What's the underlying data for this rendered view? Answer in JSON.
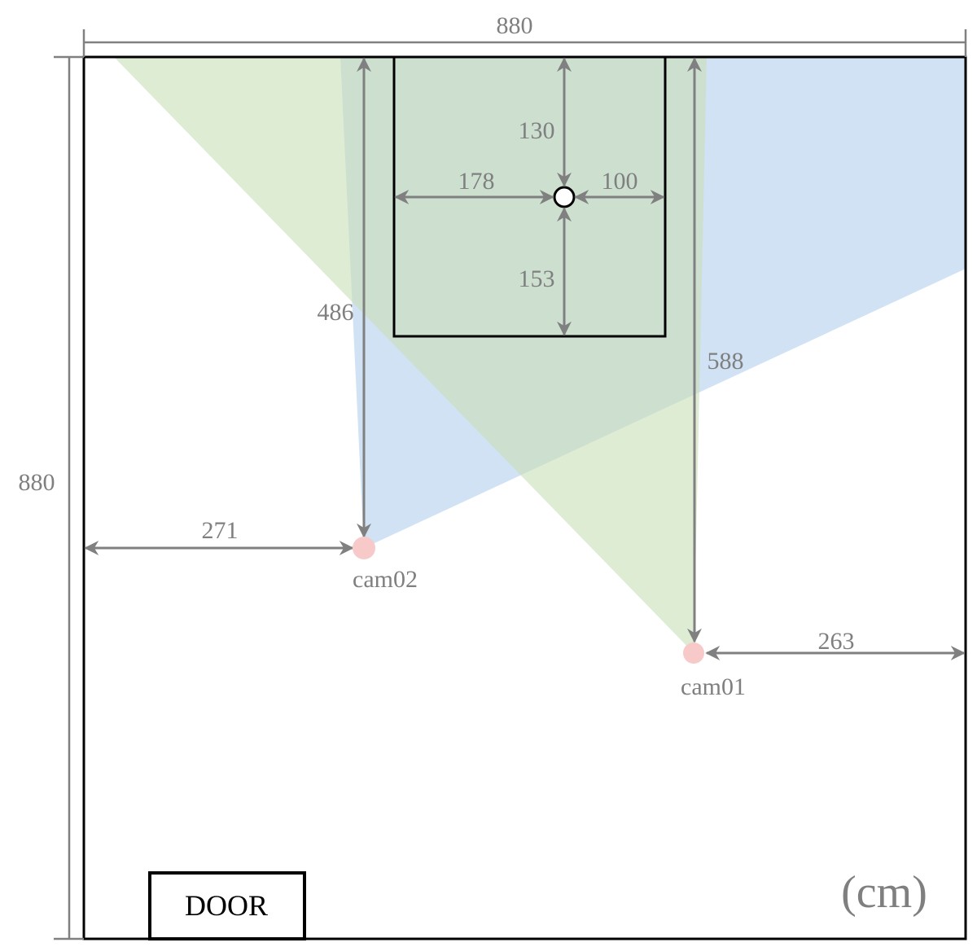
{
  "colors": {
    "fov_cam01": "#c9dfb8",
    "fov_cam02": "#b9d3ee",
    "overlap": "#c1d8cc",
    "camera_dot": "#f7c9c9",
    "dimension": "#7f7f7f",
    "walls": "#000000"
  },
  "room": {
    "width_label": "880",
    "height_label": "880",
    "unit_label": "(cm)"
  },
  "door": {
    "label": "DOOR"
  },
  "target": {
    "top_label": "130",
    "left_label": "178",
    "right_label": "100",
    "bottom_label": "153"
  },
  "cameras": [
    {
      "id": "cam01",
      "label": "cam01",
      "dist_to_top_label": "588",
      "dist_to_right_label": "263"
    },
    {
      "id": "cam02",
      "label": "cam02",
      "dist_to_top_label": "486",
      "dist_to_left_label": "271"
    }
  ]
}
